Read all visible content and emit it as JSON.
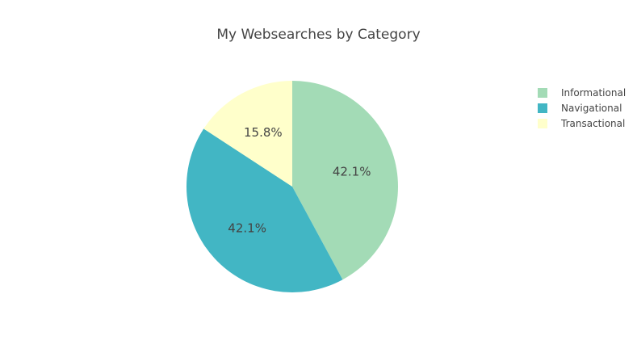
{
  "chart_data": {
    "type": "pie",
    "title": "My Websearches by Category",
    "labels": [
      "Informational",
      "Navigational",
      "Transactional"
    ],
    "values": [
      42.1,
      42.1,
      15.8
    ],
    "value_labels": [
      "42.1%",
      "42.1%",
      "15.8%"
    ],
    "colors": [
      "#a3dbb6",
      "#42b6c4",
      "#ffffcb"
    ],
    "legend_position": "top-right",
    "direction": "clockwise",
    "start_angle": "top"
  }
}
